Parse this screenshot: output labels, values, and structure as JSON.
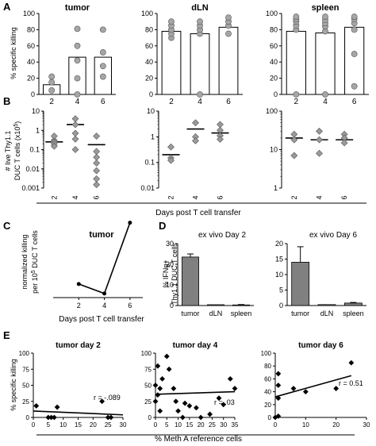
{
  "panel_letters": {
    "A": "A",
    "B": "B",
    "C": "C",
    "D": "D",
    "E": "E"
  },
  "colors": {
    "bar": "#ffffff",
    "dot": "#a6a6a6",
    "diamond": "#9a9a9a",
    "dark_bar": "#808080",
    "black": "#000000"
  },
  "text": {
    "a_ylabel": "% specific killing",
    "b_ylabel_1": "# live Thy1.1",
    "b_ylabel_2": "DUC T cells (x10",
    "b_ylabel_sup": "5",
    "b_ylabel_3": ")",
    "b_xlabel": "Days post T cell transfer",
    "c_ylabel_1": "normalized killing",
    "c_ylabel_2": "per 10",
    "c_ylabel_sup": "5",
    "c_ylabel_3": " DUC T cells",
    "c_xlabel": "Days post T cell transfer",
    "d_ylabel_1": "% IFNg+",
    "d_ylabel_2": "Thy1.1 DUC T cells",
    "e_ylabel": "% specific killing",
    "e_xlabel": "% Meth A reference cells"
  },
  "chart_data": [
    {
      "id": "A1",
      "type": "bar",
      "title": "tumor",
      "categories": [
        "2",
        "4",
        "6"
      ],
      "values": [
        12,
        46,
        46
      ],
      "ylim": [
        0,
        100
      ],
      "yticks": [
        "0",
        "20",
        "40",
        "60",
        "80",
        "100"
      ],
      "points": [
        [
          5,
          2
        ],
        [
          15,
          2
        ],
        [
          22,
          2
        ],
        [
          0,
          4
        ],
        [
          20,
          4
        ],
        [
          42,
          4
        ],
        [
          60,
          4
        ],
        [
          81,
          4
        ],
        [
          22,
          6
        ],
        [
          35,
          6
        ],
        [
          52,
          6
        ],
        [
          80,
          6
        ]
      ]
    },
    {
      "id": "A2",
      "type": "bar",
      "title": "dLN",
      "categories": [
        "2",
        "4",
        "6"
      ],
      "values": [
        78,
        75,
        83
      ],
      "ylim": [
        0,
        100
      ],
      "points": [
        [
          70,
          2
        ],
        [
          75,
          2
        ],
        [
          80,
          2
        ],
        [
          85,
          2
        ],
        [
          90,
          2
        ],
        [
          0,
          4
        ],
        [
          75,
          4
        ],
        [
          80,
          4
        ],
        [
          85,
          4
        ],
        [
          90,
          4
        ],
        [
          75,
          6
        ],
        [
          85,
          6
        ],
        [
          90,
          6
        ],
        [
          95,
          6
        ]
      ]
    },
    {
      "id": "A3",
      "type": "bar",
      "title": "spleen",
      "categories": [
        "2",
        "4",
        "6"
      ],
      "values": [
        78,
        76,
        83
      ],
      "ylim": [
        0,
        100
      ],
      "points": [
        [
          0,
          2
        ],
        [
          80,
          2
        ],
        [
          85,
          2
        ],
        [
          90,
          2
        ],
        [
          93,
          2
        ],
        [
          96,
          2
        ],
        [
          0,
          4
        ],
        [
          78,
          4
        ],
        [
          84,
          4
        ],
        [
          88,
          4
        ],
        [
          92,
          4
        ],
        [
          96,
          4
        ],
        [
          10,
          6
        ],
        [
          50,
          6
        ],
        [
          80,
          6
        ],
        [
          88,
          6
        ],
        [
          93,
          6
        ],
        [
          96,
          6
        ]
      ]
    },
    {
      "id": "B1",
      "type": "scatter",
      "scale": "log",
      "ylim": [
        0.001,
        10
      ],
      "yticks": [
        "0.001",
        "0.01",
        "0.1",
        "1",
        "10"
      ],
      "categories": [
        "2",
        "4",
        "6"
      ],
      "medians": [
        0.25,
        2,
        0.18
      ],
      "points": [
        [
          0.3,
          2
        ],
        [
          0.25,
          2
        ],
        [
          0.2,
          2
        ],
        [
          0.5,
          2
        ],
        [
          0.15,
          2
        ],
        [
          4,
          4
        ],
        [
          2,
          4
        ],
        [
          0.7,
          4
        ],
        [
          0.35,
          4
        ],
        [
          0.1,
          4
        ],
        [
          0.08,
          6
        ],
        [
          0.04,
          6
        ],
        [
          0.02,
          6
        ],
        [
          0.008,
          6
        ],
        [
          0.003,
          6
        ],
        [
          0.0015,
          6
        ],
        [
          0.5,
          6
        ]
      ]
    },
    {
      "id": "B2",
      "type": "scatter",
      "scale": "log",
      "ylim": [
        0.01,
        10
      ],
      "yticks": [
        "0.01",
        "0.1",
        "1",
        "10"
      ],
      "categories": [
        "2",
        "4",
        "6"
      ],
      "medians": [
        0.2,
        2,
        1.4
      ],
      "points": [
        [
          0.4,
          2
        ],
        [
          0.15,
          2
        ],
        [
          0.12,
          2
        ],
        [
          3.5,
          4
        ],
        [
          1,
          4
        ],
        [
          0.7,
          4
        ],
        [
          3,
          6
        ],
        [
          1.8,
          6
        ],
        [
          1.1,
          6
        ],
        [
          0.8,
          6
        ]
      ]
    },
    {
      "id": "B3",
      "type": "scatter",
      "scale": "log",
      "ylim": [
        1,
        100
      ],
      "yticks": [
        "1",
        "10",
        "100"
      ],
      "categories": [
        "2",
        "4",
        "6"
      ],
      "medians": [
        20,
        18,
        18
      ],
      "points": [
        [
          25,
          2
        ],
        [
          18,
          2
        ],
        [
          7,
          2
        ],
        [
          30,
          4
        ],
        [
          18,
          4
        ],
        [
          8,
          4
        ],
        [
          25,
          6
        ],
        [
          20,
          6
        ],
        [
          15,
          6
        ]
      ]
    },
    {
      "id": "C",
      "type": "line",
      "title": "tumor",
      "x": [
        2,
        4,
        6
      ],
      "y": [
        50,
        15,
        275
      ],
      "xlim": [
        0,
        7
      ],
      "ylim": [
        0,
        300
      ]
    },
    {
      "id": "D1",
      "type": "bar",
      "title": "ex vivo Day 2",
      "categories": [
        "tumor",
        "dLN",
        "spleen"
      ],
      "values": [
        23.5,
        0.4,
        0.3
      ],
      "errors": [
        1.5,
        0,
        0.2
      ],
      "ylim": [
        0,
        30
      ],
      "yticks": [
        "0",
        "10",
        "20",
        "30"
      ]
    },
    {
      "id": "D2",
      "type": "bar",
      "title": "ex vivo Day 6",
      "categories": [
        "tumor",
        "dLN",
        "spleen"
      ],
      "values": [
        14,
        0.3,
        0.8
      ],
      "errors": [
        5,
        0,
        0.2
      ],
      "ylim": [
        0,
        20
      ],
      "yticks": [
        "0",
        "5",
        "10",
        "15",
        "20"
      ]
    },
    {
      "id": "E1",
      "type": "scatter",
      "title": "tumor day 2",
      "annotation": "r = -.089",
      "xlim": [
        0,
        30
      ],
      "ylim": [
        0,
        100
      ],
      "xticks": [
        "0",
        "5",
        "10",
        "15",
        "20",
        "25",
        "30"
      ],
      "yticks": [
        "0",
        "25",
        "50",
        "75",
        "100"
      ],
      "points": [
        [
          1,
          18
        ],
        [
          5,
          0
        ],
        [
          6,
          0
        ],
        [
          7,
          0
        ],
        [
          8,
          16
        ],
        [
          23,
          25
        ],
        [
          25,
          0
        ],
        [
          26,
          0
        ]
      ],
      "fit": [
        [
          0,
          10
        ],
        [
          30,
          4
        ]
      ]
    },
    {
      "id": "E2",
      "type": "scatter",
      "title": "tumor day 4",
      "annotation": "r = .03",
      "xlim": [
        0,
        35
      ],
      "ylim": [
        0,
        100
      ],
      "xticks": [
        "0",
        "5",
        "10",
        "15",
        "20",
        "25",
        "30",
        "35"
      ],
      "yticks": [
        "0",
        "25",
        "50",
        "75",
        "100"
      ],
      "points": [
        [
          0,
          50
        ],
        [
          1,
          80
        ],
        [
          2,
          45
        ],
        [
          1,
          35
        ],
        [
          3,
          60
        ],
        [
          0,
          25
        ],
        [
          2,
          10
        ],
        [
          5,
          95
        ],
        [
          6,
          75
        ],
        [
          8,
          45
        ],
        [
          9,
          25
        ],
        [
          10,
          10
        ],
        [
          12,
          0
        ],
        [
          13,
          22
        ],
        [
          15,
          18
        ],
        [
          18,
          15
        ],
        [
          20,
          0
        ],
        [
          24,
          5
        ],
        [
          28,
          30
        ],
        [
          30,
          20
        ],
        [
          33,
          60
        ],
        [
          35,
          45
        ]
      ],
      "fit": [
        [
          0,
          36
        ],
        [
          35,
          40
        ]
      ]
    },
    {
      "id": "E3",
      "type": "scatter",
      "title": "tumor day 6",
      "annotation": "r = 0.51",
      "xlim": [
        0,
        30
      ],
      "ylim": [
        0,
        100
      ],
      "xticks": [
        "0",
        "10",
        "20",
        "30"
      ],
      "yticks": [
        "0",
        "20",
        "40",
        "60",
        "80",
        "100"
      ],
      "points": [
        [
          0,
          0
        ],
        [
          1,
          2
        ],
        [
          1,
          30
        ],
        [
          1,
          50
        ],
        [
          1,
          68
        ],
        [
          6,
          45
        ],
        [
          10,
          40
        ],
        [
          20,
          45
        ],
        [
          25,
          85
        ]
      ],
      "fit": [
        [
          0,
          32
        ],
        [
          25,
          65
        ]
      ]
    }
  ]
}
